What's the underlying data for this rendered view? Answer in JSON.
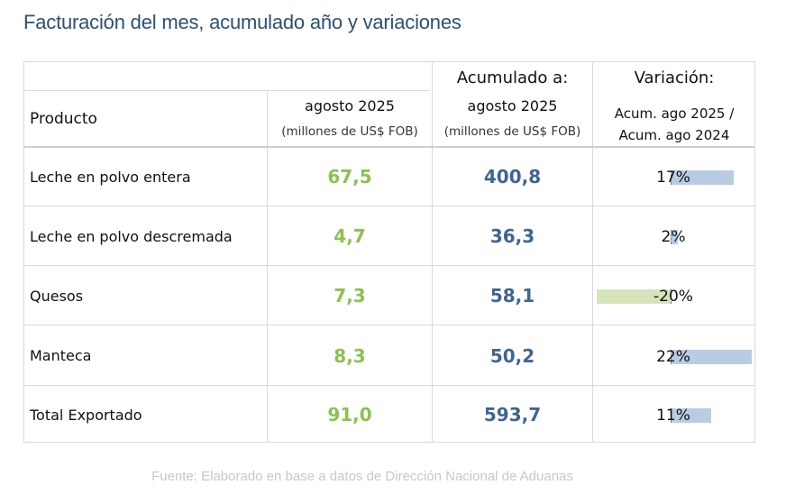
{
  "title": "Facturación del mes, acumulado año y variaciones",
  "headers": {
    "product": "Producto",
    "month_label": "agosto 2025",
    "month_unit": "(millones de US$ FOB)",
    "acum_top": "Acumulado a:",
    "acum_label": "agosto 2025",
    "acum_unit": "(millones de US$ FOB)",
    "var_top": "Variación:",
    "var_line1": "Acum. ago 2025 /",
    "var_line2": "Acum. ago 2024"
  },
  "rows": [
    {
      "product": "Leche en polvo entera",
      "month": "67,5",
      "acum": "400,8",
      "variation_label": "17%",
      "variation": 17
    },
    {
      "product": "Leche en polvo descremada",
      "month": "4,7",
      "acum": "36,3",
      "variation_label": "2%",
      "variation": 2
    },
    {
      "product": "Quesos",
      "month": "7,3",
      "acum": "58,1",
      "variation_label": "-20%",
      "variation": -20
    },
    {
      "product": "Manteca",
      "month": "8,3",
      "acum": "50,2",
      "variation_label": "22%",
      "variation": 22
    },
    {
      "product": "Total Exportado",
      "month": "91,0",
      "acum": "593,7",
      "variation_label": "11%",
      "variation": 11
    }
  ],
  "colors": {
    "month_values": "#8cc152",
    "acum_values": "#3f6592",
    "positive_bar": "#b8cce4",
    "negative_bar": "#d6e4bc"
  },
  "source": "Fuente: Elaborado en base a datos de Dirección Nacional de Aduanas"
}
